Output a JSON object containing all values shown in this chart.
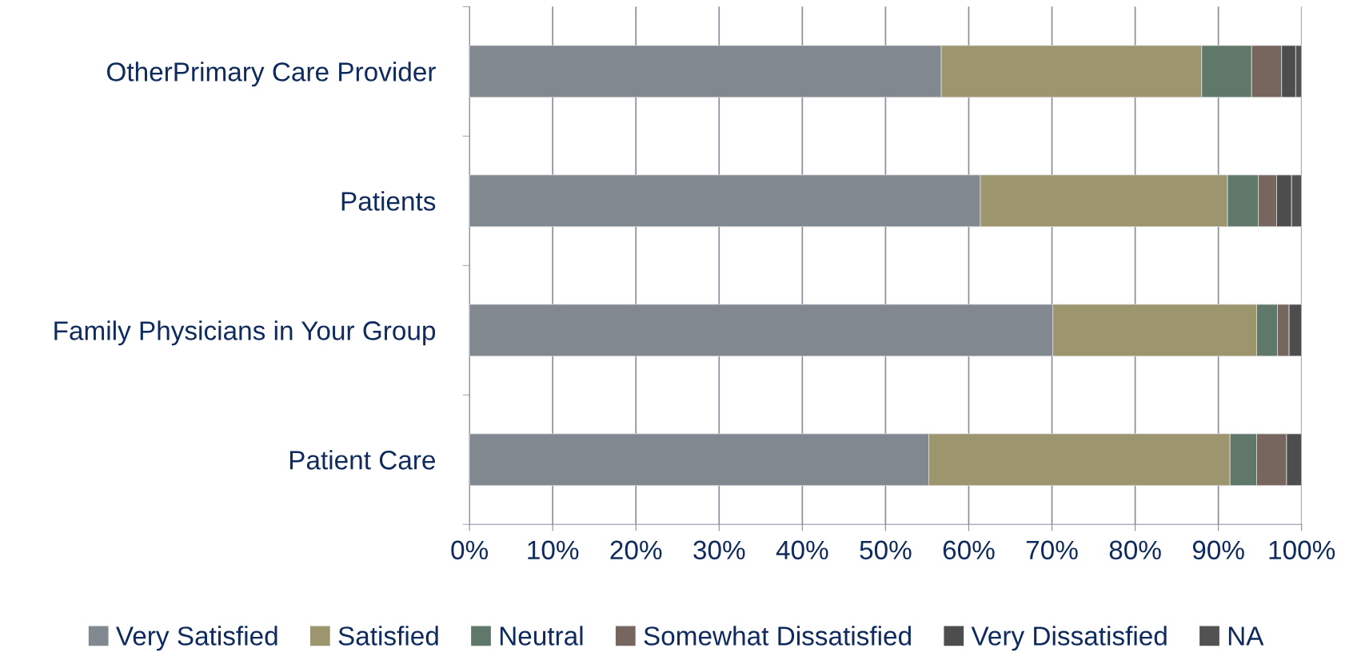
{
  "chart_data": {
    "type": "bar",
    "orientation": "horizontal",
    "stacked": true,
    "categories": [
      "OtherPrimary Care Provider",
      "Patients",
      "Family Physicians in Your Group",
      "Patient Care"
    ],
    "series": [
      {
        "name": "Very Satisfied",
        "color": "#828890",
        "values": [
          56.7,
          61.4,
          70.1,
          55.2
        ]
      },
      {
        "name": "Satisfied",
        "color": "#9c956e",
        "values": [
          31.3,
          29.7,
          24.5,
          36.2
        ]
      },
      {
        "name": "Neutral",
        "color": "#60786a",
        "values": [
          6.0,
          3.7,
          2.5,
          3.2
        ]
      },
      {
        "name": "Somewhat Dissatisfied",
        "color": "#76665e",
        "values": [
          3.6,
          2.2,
          1.4,
          3.6
        ]
      },
      {
        "name": "Very Dissatisfied",
        "color": "#4d4d4d",
        "values": [
          1.7,
          1.8,
          1.5,
          1.8
        ]
      },
      {
        "name": "NA",
        "color": "#525252",
        "values": [
          0.7,
          1.2,
          null,
          null
        ]
      }
    ],
    "xlim": [
      0,
      100
    ],
    "xticks": [
      {
        "value": 0,
        "label": "0%"
      },
      {
        "value": 10,
        "label": "10%"
      },
      {
        "value": 20,
        "label": "20%"
      },
      {
        "value": 30,
        "label": "30%"
      },
      {
        "value": 40,
        "label": "40%"
      },
      {
        "value": 50,
        "label": "50%"
      },
      {
        "value": 60,
        "label": "60%"
      },
      {
        "value": 70,
        "label": "70%"
      },
      {
        "value": 80,
        "label": "80%"
      },
      {
        "value": 90,
        "label": "90%"
      },
      {
        "value": 100,
        "label": "100%"
      }
    ],
    "grid": "x",
    "legend": "bottom"
  }
}
